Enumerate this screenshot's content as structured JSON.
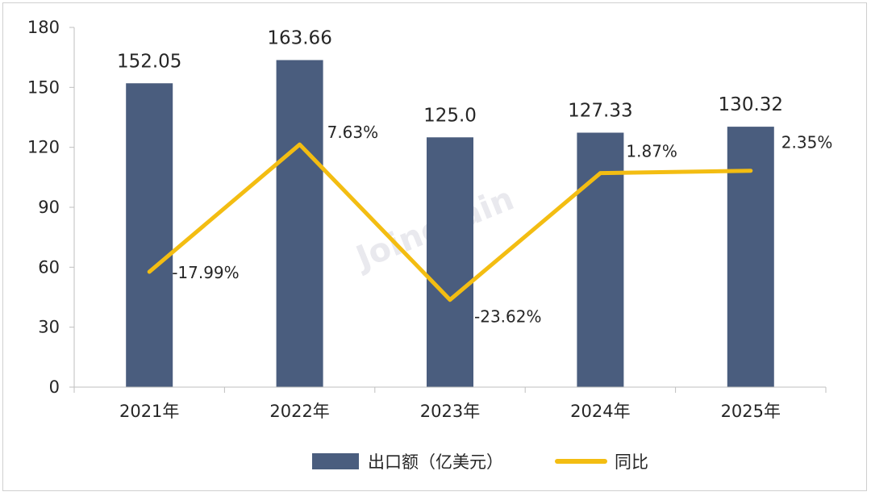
{
  "colors": {
    "bar": "#4a5d7e",
    "line": "#f3bd12",
    "axis": "#bfbfbf"
  },
  "watermark": "Joinchain",
  "chart_data": {
    "type": "bar",
    "categories": [
      "2021年",
      "2022年",
      "2023年",
      "2024年",
      "2025年"
    ],
    "series": [
      {
        "name": "出口额（亿美元）",
        "type": "bar",
        "values": [
          152.05,
          163.66,
          125.0,
          127.33,
          130.32
        ],
        "labels": [
          "152.05",
          "163.66",
          "125.0",
          "127.33",
          "130.32"
        ]
      },
      {
        "name": "同比",
        "type": "line",
        "values": [
          -17.99,
          7.63,
          -23.62,
          1.87,
          2.35
        ],
        "labels": [
          "-17.99%",
          "7.63%",
          "-23.62%",
          "1.87%",
          "2.35%"
        ]
      }
    ],
    "ylim": [
      0,
      180
    ],
    "yticks": [
      0,
      30,
      60,
      90,
      120,
      150,
      180
    ],
    "secondary_ylim": [
      -41.2,
      31.2
    ],
    "legend": "bottom",
    "grid": false
  }
}
